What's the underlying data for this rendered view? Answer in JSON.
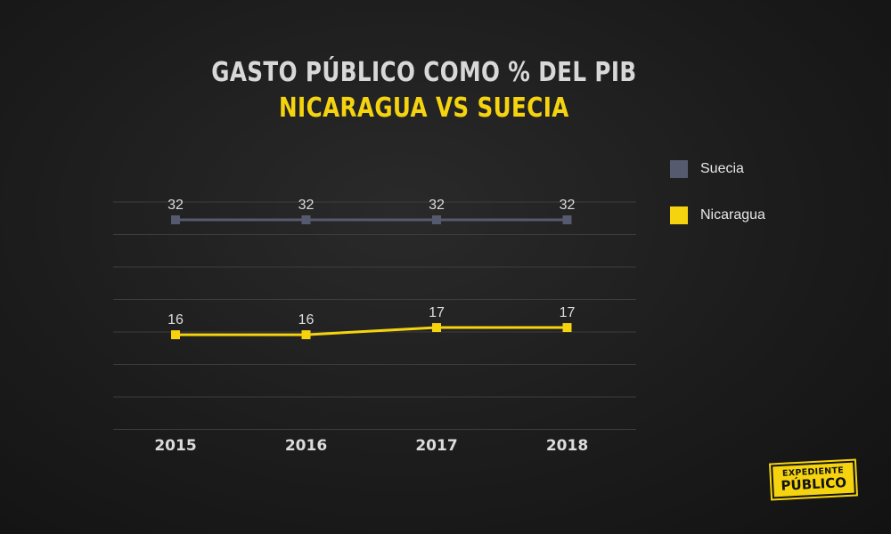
{
  "chart_data": {
    "type": "line",
    "title": "GASTO PÚBLICO COMO % DEL PIB",
    "subtitle": "NICARAGUA VS SUECIA",
    "categories": [
      "2015",
      "2016",
      "2017",
      "2018"
    ],
    "series": [
      {
        "name": "Suecia",
        "values": [
          32,
          32,
          32,
          32
        ],
        "color": "#555a6e"
      },
      {
        "name": "Nicaragua",
        "values": [
          16,
          16,
          17,
          17
        ],
        "color": "#f5d40f"
      }
    ],
    "ylim": [
      5,
      36
    ],
    "grid": true,
    "legend": "right"
  },
  "logo": {
    "line1": "EXPEDIENTE",
    "line2": "PÚBLICO"
  }
}
